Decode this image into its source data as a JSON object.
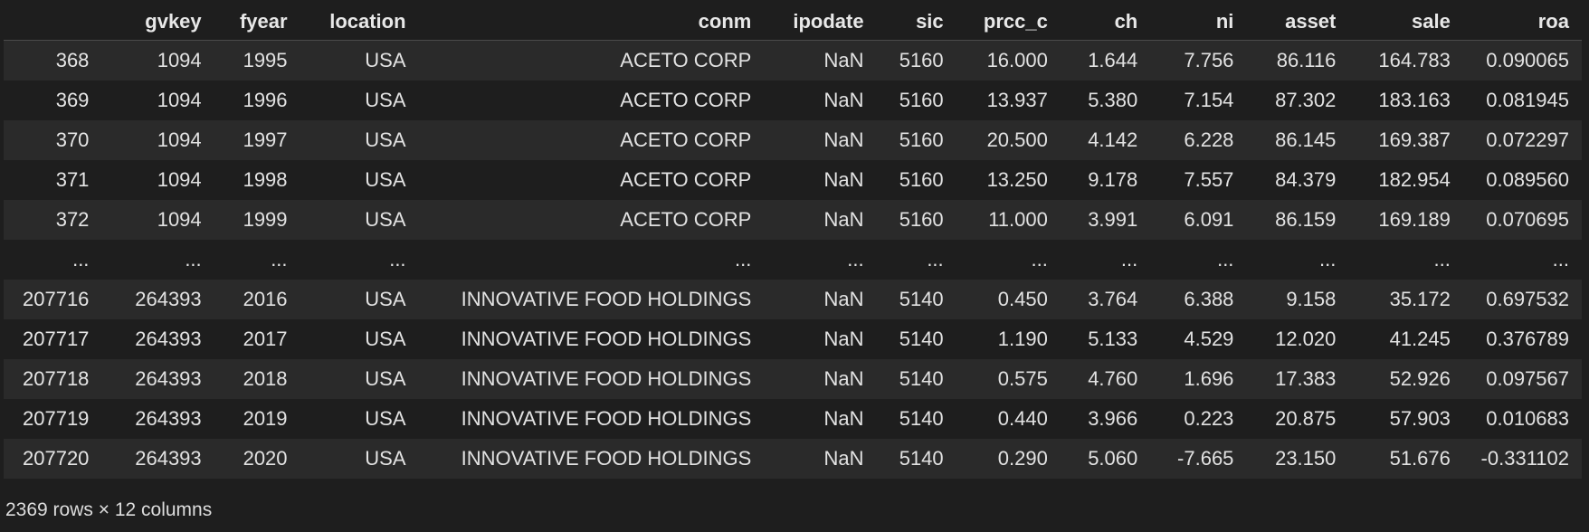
{
  "dataframe": {
    "columns": [
      "",
      "gvkey",
      "fyear",
      "location",
      "conm",
      "ipodate",
      "sic",
      "prcc_c",
      "ch",
      "ni",
      "asset",
      "sale",
      "roa"
    ],
    "rows": [
      [
        "368",
        "1094",
        "1995",
        "USA",
        "ACETO CORP",
        "NaN",
        "5160",
        "16.000",
        "1.644",
        "7.756",
        "86.116",
        "164.783",
        "0.090065"
      ],
      [
        "369",
        "1094",
        "1996",
        "USA",
        "ACETO CORP",
        "NaN",
        "5160",
        "13.937",
        "5.380",
        "7.154",
        "87.302",
        "183.163",
        "0.081945"
      ],
      [
        "370",
        "1094",
        "1997",
        "USA",
        "ACETO CORP",
        "NaN",
        "5160",
        "20.500",
        "4.142",
        "6.228",
        "86.145",
        "169.387",
        "0.072297"
      ],
      [
        "371",
        "1094",
        "1998",
        "USA",
        "ACETO CORP",
        "NaN",
        "5160",
        "13.250",
        "9.178",
        "7.557",
        "84.379",
        "182.954",
        "0.089560"
      ],
      [
        "372",
        "1094",
        "1999",
        "USA",
        "ACETO CORP",
        "NaN",
        "5160",
        "11.000",
        "3.991",
        "6.091",
        "86.159",
        "169.189",
        "0.070695"
      ],
      [
        "...",
        "...",
        "...",
        "...",
        "...",
        "...",
        "...",
        "...",
        "...",
        "...",
        "...",
        "...",
        "..."
      ],
      [
        "207716",
        "264393",
        "2016",
        "USA",
        "INNOVATIVE FOOD HOLDINGS",
        "NaN",
        "5140",
        "0.450",
        "3.764",
        "6.388",
        "9.158",
        "35.172",
        "0.697532"
      ],
      [
        "207717",
        "264393",
        "2017",
        "USA",
        "INNOVATIVE FOOD HOLDINGS",
        "NaN",
        "5140",
        "1.190",
        "5.133",
        "4.529",
        "12.020",
        "41.245",
        "0.376789"
      ],
      [
        "207718",
        "264393",
        "2018",
        "USA",
        "INNOVATIVE FOOD HOLDINGS",
        "NaN",
        "5140",
        "0.575",
        "4.760",
        "1.696",
        "17.383",
        "52.926",
        "0.097567"
      ],
      [
        "207719",
        "264393",
        "2019",
        "USA",
        "INNOVATIVE FOOD HOLDINGS",
        "NaN",
        "5140",
        "0.440",
        "3.966",
        "0.223",
        "20.875",
        "57.903",
        "0.010683"
      ],
      [
        "207720",
        "264393",
        "2020",
        "USA",
        "INNOVATIVE FOOD HOLDINGS",
        "NaN",
        "5140",
        "0.290",
        "5.060",
        "-7.665",
        "23.150",
        "51.676",
        "-0.331102"
      ]
    ],
    "shape_text": "2369 rows × 12 columns"
  }
}
